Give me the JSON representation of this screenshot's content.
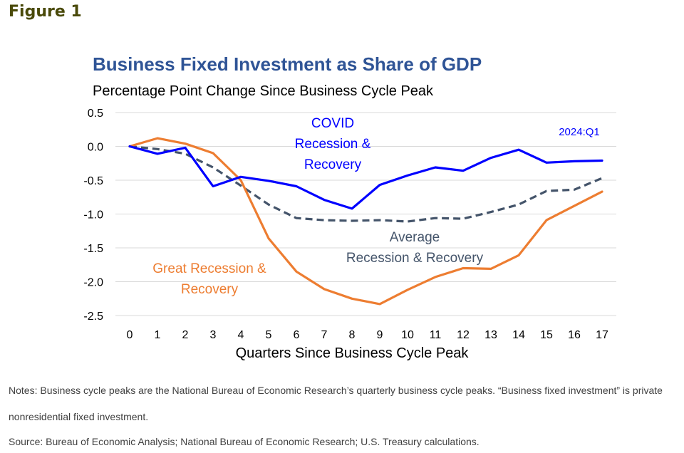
{
  "figure_label": "Figure 1",
  "notes": "Notes: Business cycle peaks are the National Bureau of Economic Research’s quarterly business cycle peaks. “Business fixed investment” is private nonresidential fixed investment.",
  "source": "Source: Bureau of Economic Analysis; National Bureau of Economic Research; U.S. Treasury calculations.",
  "colors": {
    "title": "#2f5496",
    "covid": "#0000ff",
    "great_recession": "#ed7d31",
    "average": "#44546a",
    "grid": "#d9d9d9",
    "text": "#000000"
  },
  "chart_data": {
    "type": "line",
    "title": "Business Fixed Investment as Share of GDP",
    "subtitle": "Percentage Point Change Since Business Cycle Peak",
    "xlabel": "Quarters Since Business Cycle Peak",
    "ylabel": "",
    "x": [
      0,
      1,
      2,
      3,
      4,
      5,
      6,
      7,
      8,
      9,
      10,
      11,
      12,
      13,
      14,
      15,
      16,
      17
    ],
    "ylim": [
      -2.5,
      0.5
    ],
    "yticks": [
      "0.5",
      "0.0",
      "-0.5",
      "-1.0",
      "-1.5",
      "-2.0",
      "-2.5"
    ],
    "ytick_values": [
      0.5,
      0.0,
      -0.5,
      -1.0,
      -1.5,
      -2.0,
      -2.5
    ],
    "xticks": [
      "0",
      "1",
      "2",
      "3",
      "4",
      "5",
      "6",
      "7",
      "8",
      "9",
      "10",
      "11",
      "12",
      "13",
      "14",
      "15",
      "16",
      "17"
    ],
    "grid": "horizontal",
    "series": [
      {
        "key": "covid",
        "name": "COVID Recession & Recovery",
        "label_lines": [
          "COVID",
          "Recession &",
          "Recovery"
        ],
        "style": "solid",
        "values": [
          0.0,
          -0.11,
          -0.02,
          -0.59,
          -0.45,
          -0.51,
          -0.59,
          -0.79,
          -0.92,
          -0.57,
          -0.43,
          -0.31,
          -0.36,
          -0.17,
          -0.05,
          -0.24,
          -0.22,
          -0.21
        ]
      },
      {
        "key": "great_recession",
        "name": "Great Recession & Recovery",
        "label_lines": [
          "Great Recession &",
          "Recovery"
        ],
        "style": "solid",
        "values": [
          0.0,
          0.12,
          0.04,
          -0.1,
          -0.5,
          -1.36,
          -1.85,
          -2.11,
          -2.25,
          -2.33,
          -2.12,
          -1.93,
          -1.8,
          -1.81,
          -1.61,
          -1.09,
          -0.88,
          -0.67
        ]
      },
      {
        "key": "average",
        "name": "Average Recession & Recovery",
        "label_lines": [
          "Average",
          "Recession & Recovery"
        ],
        "style": "dashed",
        "values": [
          0.0,
          -0.04,
          -0.11,
          -0.31,
          -0.58,
          -0.86,
          -1.06,
          -1.09,
          -1.1,
          -1.09,
          -1.11,
          -1.06,
          -1.07,
          -0.97,
          -0.86,
          -0.66,
          -0.64,
          -0.47
        ]
      }
    ],
    "annotations": [
      {
        "text": "2024:Q1"
      }
    ]
  }
}
